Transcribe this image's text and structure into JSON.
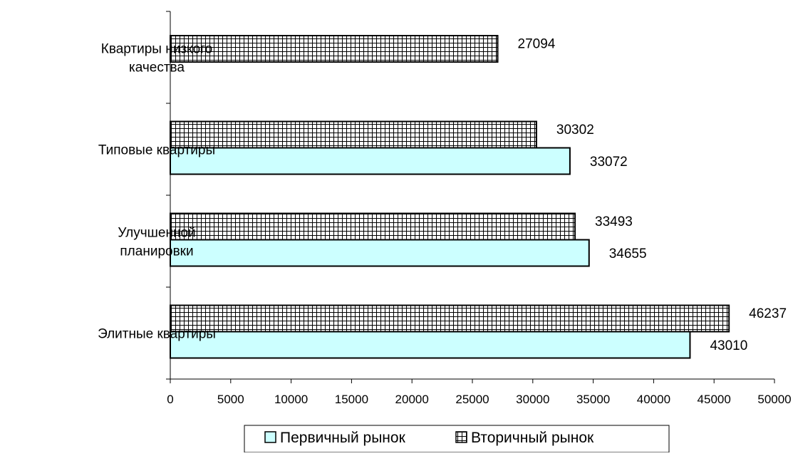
{
  "chart_data": {
    "type": "bar",
    "orientation": "horizontal",
    "categories": [
      [
        "Квартиры низкого",
        "качества"
      ],
      [
        "Типовые квартиры"
      ],
      [
        "Улучшенной",
        "планировки"
      ],
      [
        "Элитные квартиры"
      ]
    ],
    "series": [
      {
        "name": "Первичный рынок",
        "values": [
          null,
          33072,
          34655,
          43010
        ],
        "labels": [
          "",
          "33072",
          "34655",
          "43010"
        ],
        "color": "#ccffff",
        "pattern": "solid"
      },
      {
        "name": "Вторичный рынок",
        "values": [
          27094,
          30302,
          33493,
          46237
        ],
        "labels": [
          "27094",
          "30302",
          "33493",
          "46237"
        ],
        "color": "#ffffff",
        "pattern": "grid"
      }
    ],
    "xlim": [
      0,
      50000
    ],
    "xticks": [
      "0",
      "5000",
      "10000",
      "15000",
      "20000",
      "25000",
      "30000",
      "35000",
      "40000",
      "45000",
      "50000"
    ],
    "grid": false,
    "legend": "bottom",
    "title": "",
    "xlabel": "",
    "ylabel": ""
  }
}
